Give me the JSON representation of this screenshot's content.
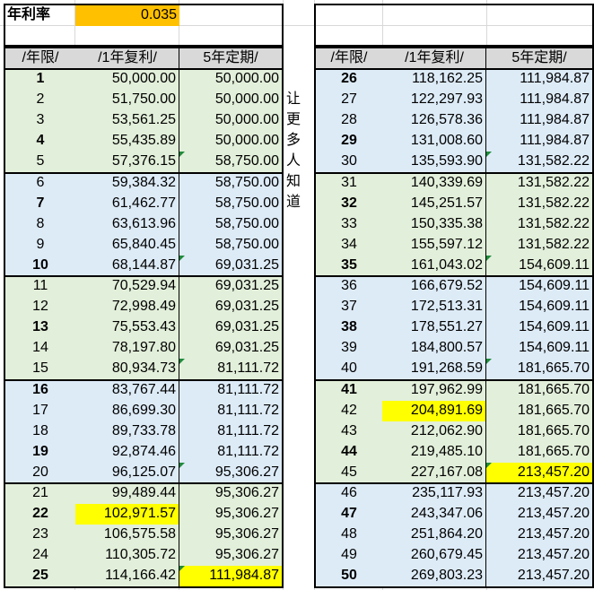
{
  "rate": {
    "label": "年利率",
    "value": "0.035"
  },
  "headers": {
    "year": "/年限/",
    "compound": "/1年复利/",
    "fixed": "5年定期/"
  },
  "side_text": [
    "让",
    "更",
    "多",
    "人",
    "知",
    "道"
  ],
  "left_rows": [
    {
      "y": "1",
      "c": "50,000.00",
      "f": "50,000.00",
      "bold": true,
      "band": "green"
    },
    {
      "y": "2",
      "c": "51,750.00",
      "f": "50,000.00",
      "bold": false,
      "band": "green"
    },
    {
      "y": "3",
      "c": "53,561.25",
      "f": "50,000.00",
      "bold": false,
      "band": "green"
    },
    {
      "y": "4",
      "c": "55,435.89",
      "f": "50,000.00",
      "bold": true,
      "band": "green"
    },
    {
      "y": "5",
      "c": "57,376.15",
      "f": "58,750.00",
      "bold": false,
      "band": "green",
      "tri": true
    },
    {
      "y": "6",
      "c": "59,384.32",
      "f": "58,750.00",
      "bold": false,
      "band": "blue"
    },
    {
      "y": "7",
      "c": "61,462.77",
      "f": "58,750.00",
      "bold": true,
      "band": "blue"
    },
    {
      "y": "8",
      "c": "63,613.96",
      "f": "58,750.00",
      "bold": false,
      "band": "blue"
    },
    {
      "y": "9",
      "c": "65,840.45",
      "f": "58,750.00",
      "bold": false,
      "band": "blue"
    },
    {
      "y": "10",
      "c": "68,144.87",
      "f": "69,031.25",
      "bold": true,
      "band": "blue",
      "tri": true
    },
    {
      "y": "11",
      "c": "70,529.94",
      "f": "69,031.25",
      "bold": false,
      "band": "green"
    },
    {
      "y": "12",
      "c": "72,998.49",
      "f": "69,031.25",
      "bold": false,
      "band": "green"
    },
    {
      "y": "13",
      "c": "75,553.43",
      "f": "69,031.25",
      "bold": true,
      "band": "green"
    },
    {
      "y": "14",
      "c": "78,197.80",
      "f": "69,031.25",
      "bold": false,
      "band": "green"
    },
    {
      "y": "15",
      "c": "80,934.73",
      "f": "81,111.72",
      "bold": false,
      "band": "green",
      "tri": true
    },
    {
      "y": "16",
      "c": "83,767.44",
      "f": "81,111.72",
      "bold": true,
      "band": "blue"
    },
    {
      "y": "17",
      "c": "86,699.30",
      "f": "81,111.72",
      "bold": false,
      "band": "blue"
    },
    {
      "y": "18",
      "c": "89,733.78",
      "f": "81,111.72",
      "bold": false,
      "band": "blue"
    },
    {
      "y": "19",
      "c": "92,874.46",
      "f": "81,111.72",
      "bold": true,
      "band": "blue"
    },
    {
      "y": "20",
      "c": "96,125.07",
      "f": "95,306.27",
      "bold": false,
      "band": "blue",
      "tri": true
    },
    {
      "y": "21",
      "c": "99,489.44",
      "f": "95,306.27",
      "bold": false,
      "band": "green"
    },
    {
      "y": "22",
      "c": "102,971.57",
      "f": "95,306.27",
      "bold": true,
      "band": "green",
      "hlc": true
    },
    {
      "y": "23",
      "c": "106,575.58",
      "f": "95,306.27",
      "bold": false,
      "band": "green"
    },
    {
      "y": "24",
      "c": "110,305.72",
      "f": "95,306.27",
      "bold": false,
      "band": "green"
    },
    {
      "y": "25",
      "c": "114,166.42",
      "f": "111,984.87",
      "bold": true,
      "band": "green",
      "hlf": true,
      "tri": true
    }
  ],
  "right_rows": [
    {
      "y": "26",
      "c": "118,162.25",
      "f": "111,984.87",
      "bold": true,
      "band": "blue"
    },
    {
      "y": "27",
      "c": "122,297.93",
      "f": "111,984.87",
      "bold": false,
      "band": "blue"
    },
    {
      "y": "28",
      "c": "126,578.36",
      "f": "111,984.87",
      "bold": false,
      "band": "blue"
    },
    {
      "y": "29",
      "c": "131,008.60",
      "f": "111,984.87",
      "bold": true,
      "band": "blue"
    },
    {
      "y": "30",
      "c": "135,593.90",
      "f": "131,582.22",
      "bold": false,
      "band": "blue",
      "tri": true
    },
    {
      "y": "31",
      "c": "140,339.69",
      "f": "131,582.22",
      "bold": false,
      "band": "green"
    },
    {
      "y": "32",
      "c": "145,251.57",
      "f": "131,582.22",
      "bold": true,
      "band": "green"
    },
    {
      "y": "33",
      "c": "150,335.38",
      "f": "131,582.22",
      "bold": false,
      "band": "green"
    },
    {
      "y": "34",
      "c": "155,597.12",
      "f": "131,582.22",
      "bold": false,
      "band": "green"
    },
    {
      "y": "35",
      "c": "161,043.02",
      "f": "154,609.11",
      "bold": true,
      "band": "green",
      "tri": true
    },
    {
      "y": "36",
      "c": "166,679.52",
      "f": "154,609.11",
      "bold": false,
      "band": "blue"
    },
    {
      "y": "37",
      "c": "172,513.31",
      "f": "154,609.11",
      "bold": false,
      "band": "blue"
    },
    {
      "y": "38",
      "c": "178,551.27",
      "f": "154,609.11",
      "bold": true,
      "band": "blue"
    },
    {
      "y": "39",
      "c": "184,800.57",
      "f": "154,609.11",
      "bold": false,
      "band": "blue"
    },
    {
      "y": "40",
      "c": "191,268.59",
      "f": "181,665.70",
      "bold": false,
      "band": "blue",
      "tri": true
    },
    {
      "y": "41",
      "c": "197,962.99",
      "f": "181,665.70",
      "bold": true,
      "band": "green"
    },
    {
      "y": "42",
      "c": "204,891.69",
      "f": "181,665.70",
      "bold": false,
      "band": "green",
      "hlc": true
    },
    {
      "y": "43",
      "c": "212,062.90",
      "f": "181,665.70",
      "bold": false,
      "band": "green"
    },
    {
      "y": "44",
      "c": "219,485.10",
      "f": "181,665.70",
      "bold": true,
      "band": "green"
    },
    {
      "y": "45",
      "c": "227,167.08",
      "f": "213,457.20",
      "bold": false,
      "band": "green",
      "hlf": true,
      "tri": true
    },
    {
      "y": "46",
      "c": "235,117.93",
      "f": "213,457.20",
      "bold": false,
      "band": "blue"
    },
    {
      "y": "47",
      "c": "243,347.06",
      "f": "213,457.20",
      "bold": true,
      "band": "blue"
    },
    {
      "y": "48",
      "c": "251,864.20",
      "f": "213,457.20",
      "bold": false,
      "band": "blue"
    },
    {
      "y": "49",
      "c": "260,679.45",
      "f": "213,457.20",
      "bold": false,
      "band": "blue"
    },
    {
      "y": "50",
      "c": "269,803.23",
      "f": "213,457.20",
      "bold": true,
      "band": "blue"
    }
  ],
  "colors": {
    "green": "#e2efda",
    "blue": "#ddebf7",
    "highlight": "#ffff00",
    "rate_fill": "#ffc000",
    "header": "#d9d9d9"
  }
}
